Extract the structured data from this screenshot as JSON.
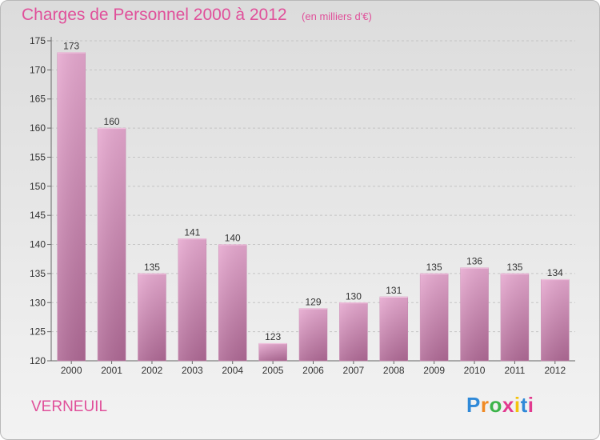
{
  "header": {
    "title": "Charges de Personnel 2000 à 2012",
    "subtitle": "(en milliers d'€)"
  },
  "commune": "VERNEUIL",
  "logo": {
    "letters": [
      "P",
      "r",
      "o",
      "x",
      "i",
      "t",
      "i"
    ],
    "colors": [
      "#2f89d8",
      "#f08a24",
      "#3cb44a",
      "#e23a8f",
      "#f4c20d",
      "#2f89d8",
      "#e23a8f"
    ]
  },
  "chart_data": {
    "type": "bar",
    "categories": [
      "2000",
      "2001",
      "2002",
      "2003",
      "2004",
      "2005",
      "2006",
      "2007",
      "2008",
      "2009",
      "2010",
      "2011",
      "2012"
    ],
    "values": [
      173,
      160,
      135,
      141,
      140,
      123,
      129,
      130,
      131,
      135,
      136,
      135,
      134
    ],
    "ylim": [
      120,
      175
    ],
    "yticks": [
      120,
      125,
      130,
      135,
      140,
      145,
      150,
      155,
      160,
      165,
      170,
      175
    ],
    "grid": "horizontal-dashed",
    "bar_color": "#d98ab9"
  }
}
